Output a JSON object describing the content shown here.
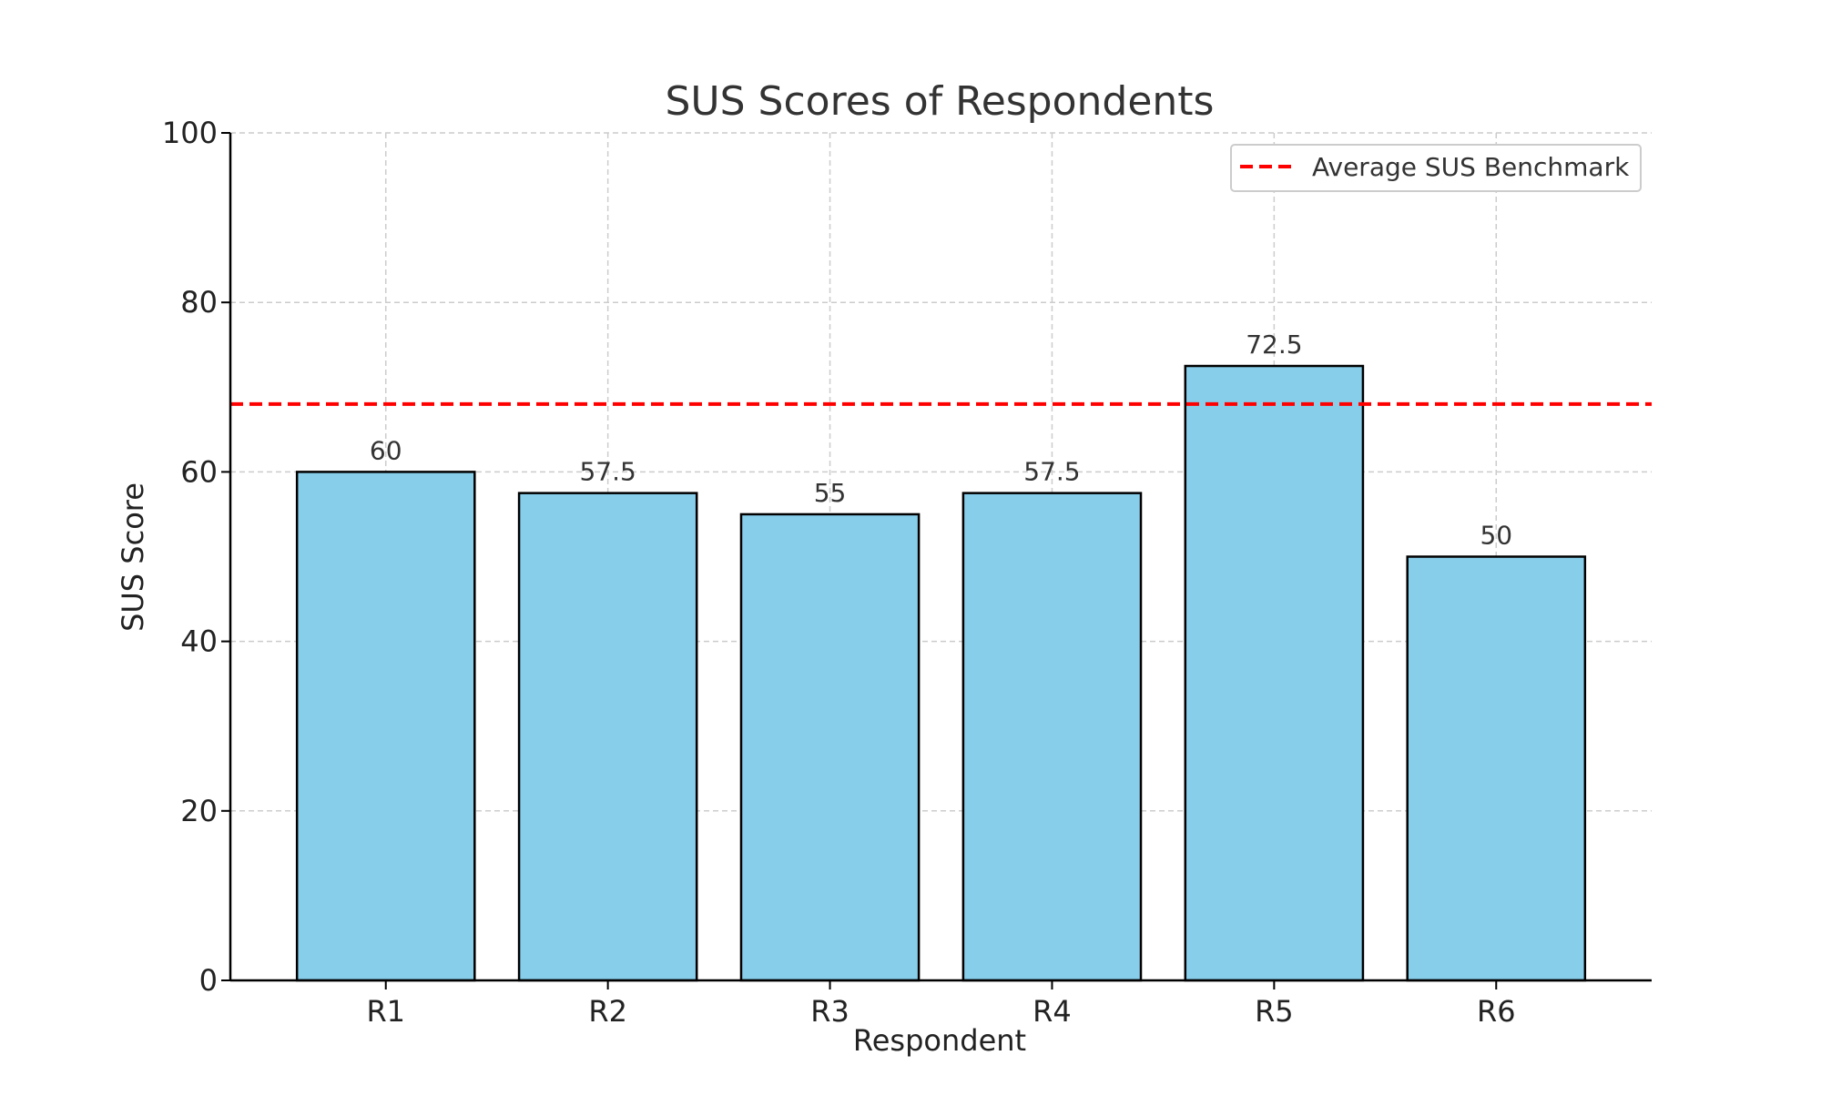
{
  "chart_data": {
    "type": "bar",
    "title": "SUS Scores of Respondents",
    "xlabel": "Respondent",
    "ylabel": "SUS Score",
    "categories": [
      "R1",
      "R2",
      "R3",
      "R4",
      "R5",
      "R6"
    ],
    "values": [
      60,
      57.5,
      55,
      57.5,
      72.5,
      50
    ],
    "value_labels": [
      "60",
      "57.5",
      "55",
      "57.5",
      "72.5",
      "50"
    ],
    "ylim": [
      0,
      100
    ],
    "yticks": [
      0,
      20,
      40,
      60,
      80,
      100
    ],
    "grid": true,
    "benchmark": {
      "label": "Average SUS Benchmark",
      "value": 68,
      "color": "#ff0000",
      "style": "dashed"
    },
    "legend_position": "top-right",
    "colors": {
      "bar_fill": "#87ceeb",
      "bar_edge": "#000000",
      "grid": "#cccccc",
      "text": "#333333"
    }
  }
}
